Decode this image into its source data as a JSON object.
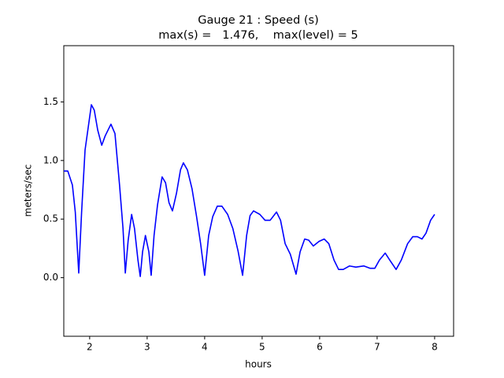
{
  "chart_data": {
    "type": "line",
    "title": "Gauge 21 : Speed (s)",
    "subtitle": "max(s) =   1.476,    max(level) = 5",
    "x_label": "hours",
    "y_label": "meters/sec",
    "xlim": [
      1.55,
      8.33
    ],
    "ylim": [
      -0.5,
      1.98
    ],
    "xticks": [
      2,
      3,
      4,
      5,
      6,
      7,
      8
    ],
    "yticks": [
      {
        "value": 0,
        "label": "0.0"
      },
      0.5,
      {
        "value": 1,
        "label": "1.0"
      },
      1.5
    ],
    "grid": false,
    "series": [
      {
        "name": "Speed",
        "color": "#0000ff",
        "x": [
          1.55,
          1.62,
          1.7,
          1.75,
          1.81,
          1.86,
          1.92,
          2.03,
          2.08,
          2.14,
          2.21,
          2.27,
          2.37,
          2.44,
          2.52,
          2.58,
          2.62,
          2.67,
          2.73,
          2.78,
          2.84,
          2.88,
          2.92,
          2.97,
          3.03,
          3.07,
          3.12,
          3.18,
          3.26,
          3.32,
          3.38,
          3.44,
          3.51,
          3.58,
          3.63,
          3.7,
          3.78,
          3.86,
          3.93,
          4.0,
          4.07,
          4.14,
          4.22,
          4.3,
          4.4,
          4.49,
          4.58,
          4.66,
          4.73,
          4.79,
          4.85,
          4.96,
          5.05,
          5.14,
          5.25,
          5.32,
          5.4,
          5.49,
          5.59,
          5.66,
          5.74,
          5.81,
          5.89,
          5.99,
          6.08,
          6.16,
          6.25,
          6.33,
          6.41,
          6.52,
          6.63,
          6.77,
          6.88,
          6.96,
          7.04,
          7.14,
          7.22,
          7.33,
          7.42,
          7.53,
          7.62,
          7.7,
          7.78,
          7.85,
          7.93,
          8.0
        ],
        "values": [
          0.91,
          0.91,
          0.79,
          0.56,
          0.04,
          0.56,
          1.09,
          1.476,
          1.43,
          1.26,
          1.13,
          1.21,
          1.31,
          1.23,
          0.79,
          0.42,
          0.04,
          0.32,
          0.54,
          0.42,
          0.15,
          0.01,
          0.22,
          0.36,
          0.22,
          0.02,
          0.36,
          0.62,
          0.86,
          0.81,
          0.64,
          0.57,
          0.72,
          0.92,
          0.98,
          0.92,
          0.76,
          0.52,
          0.29,
          0.02,
          0.36,
          0.52,
          0.61,
          0.61,
          0.54,
          0.42,
          0.23,
          0.02,
          0.36,
          0.53,
          0.57,
          0.54,
          0.49,
          0.49,
          0.56,
          0.49,
          0.29,
          0.2,
          0.03,
          0.22,
          0.33,
          0.32,
          0.27,
          0.31,
          0.33,
          0.29,
          0.15,
          0.07,
          0.07,
          0.1,
          0.09,
          0.1,
          0.08,
          0.08,
          0.15,
          0.21,
          0.15,
          0.07,
          0.15,
          0.29,
          0.35,
          0.35,
          0.33,
          0.38,
          0.49,
          0.54
        ]
      }
    ]
  }
}
